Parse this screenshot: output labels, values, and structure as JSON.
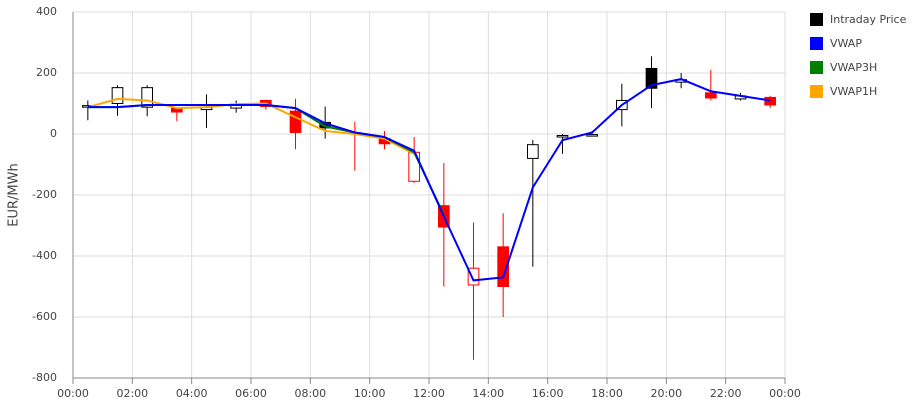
{
  "chart_data": {
    "type": "candlestick",
    "y_label": "EUR/MWh",
    "x": [
      0.5,
      1.5,
      2.5,
      3.5,
      4.5,
      5.5,
      6.5,
      7.5,
      8.5,
      9.5,
      10.5,
      11.5,
      12.5,
      13.5,
      14.5,
      15.5,
      16.5,
      17.5,
      18.5,
      19.5,
      20.5,
      21.5,
      22.5,
      23.5
    ],
    "xlim": [
      0,
      24
    ],
    "xticks": [
      {
        "value": 0,
        "label": "00:00"
      },
      {
        "value": 2,
        "label": "02:00"
      },
      {
        "value": 4,
        "label": "04:00"
      },
      {
        "value": 6,
        "label": "06:00"
      },
      {
        "value": 8,
        "label": "08:00"
      },
      {
        "value": 10,
        "label": "10:00"
      },
      {
        "value": 12,
        "label": "12:00"
      },
      {
        "value": 14,
        "label": "14:00"
      },
      {
        "value": 16,
        "label": "16:00"
      },
      {
        "value": 18,
        "label": "18:00"
      },
      {
        "value": 20,
        "label": "20:00"
      },
      {
        "value": 22,
        "label": "22:00"
      },
      {
        "value": 24,
        "label": "00:00"
      }
    ],
    "ylim": [
      -800,
      400
    ],
    "yticks": [
      -800,
      -600,
      -400,
      -200,
      0,
      200,
      400
    ],
    "grid": true,
    "legend": "right",
    "series": [
      {
        "name": "Intraday Price",
        "type": "candlestick",
        "color": "#000000",
        "down_color": "#ff0000",
        "open": [
          88,
          100,
          88,
          85,
          80,
          85,
          110,
          75,
          38,
          5,
          -15,
          -155,
          -235,
          -495,
          -370,
          -80,
          -10,
          -5,
          80,
          215,
          170,
          135,
          115,
          120
        ],
        "high": [
          110,
          160,
          160,
          85,
          130,
          110,
          112,
          115,
          90,
          40,
          10,
          -10,
          -95,
          -290,
          -260,
          -20,
          0,
          10,
          165,
          255,
          200,
          210,
          135,
          125
        ],
        "low": [
          45,
          60,
          58,
          42,
          20,
          70,
          80,
          -50,
          -15,
          -120,
          -50,
          -160,
          -500,
          -740,
          -600,
          -435,
          -65,
          -5,
          25,
          85,
          150,
          110,
          110,
          85
        ],
        "close": [
          93,
          152,
          152,
          72,
          88,
          98,
          90,
          5,
          20,
          0,
          -32,
          -60,
          -305,
          -440,
          -500,
          -35,
          -5,
          -2,
          110,
          150,
          178,
          118,
          125,
          95
        ]
      },
      {
        "name": "VWAP",
        "type": "line",
        "color": "#0000ff",
        "values": [
          88,
          88,
          95,
          95,
          95,
          95,
          95,
          85,
          35,
          5,
          -10,
          -55,
          -270,
          -480,
          -470,
          -175,
          -20,
          5,
          95,
          160,
          180,
          140,
          125,
          110
        ]
      },
      {
        "name": "VWAP3H",
        "type": "line",
        "color": "#008000",
        "values": [
          88,
          88,
          95,
          95,
          95,
          95,
          95,
          85,
          25,
          5,
          -10,
          -60,
          -265,
          null,
          null,
          null,
          null,
          null,
          null,
          null,
          null,
          null,
          null,
          null
        ]
      },
      {
        "name": "VWAP1H",
        "type": "line",
        "color": "#ffa500",
        "values": [
          88,
          115,
          110,
          85,
          88,
          98,
          100,
          55,
          10,
          0,
          -15,
          -65,
          null,
          null,
          null,
          null,
          null,
          null,
          null,
          null,
          null,
          null,
          null,
          null
        ]
      }
    ]
  }
}
